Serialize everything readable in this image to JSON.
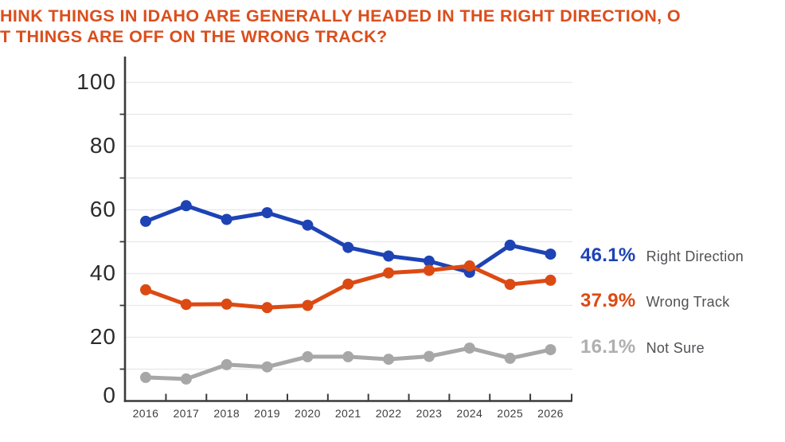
{
  "title": {
    "line1": "HINK THINGS IN IDAHO ARE GENERALLY HEADED IN THE RIGHT DIRECTION, O",
    "line2": "T THINGS ARE OFF ON THE WRONG TRACK?"
  },
  "colors": {
    "title": "#DB4E1C",
    "axis": "#3B3B3B",
    "gridline": "#E8E8E8",
    "y_tick_label": "#2B2B2B",
    "x_tick_label": "#3E3E3E",
    "legend_name_text": "#515156",
    "background": "#FFFFFF"
  },
  "chart_data": {
    "type": "line",
    "x": [
      2016,
      2017,
      2018,
      2019,
      2020,
      2021,
      2022,
      2023,
      2024,
      2025,
      2026
    ],
    "ylim": [
      0,
      100
    ],
    "yticks": [
      0,
      20,
      40,
      60,
      80,
      100
    ],
    "minor_grid_step": 10,
    "grid": "horizontal gridlines every 10, light gray",
    "legend_position": "right, each series labeled with final value",
    "series": [
      {
        "name": "Right Direction",
        "end_label": "46.1%",
        "color": "#1D43B5",
        "label_color": "#1D43B5",
        "values": [
          56.4,
          61.3,
          57.0,
          59.1,
          55.2,
          48.2,
          45.5,
          43.9,
          40.4,
          48.9,
          46.1
        ]
      },
      {
        "name": "Wrong Track",
        "end_label": "37.9%",
        "color": "#DC4A13",
        "label_color": "#DC4A13",
        "values": [
          34.9,
          30.3,
          30.4,
          29.3,
          30.0,
          36.7,
          40.2,
          41.0,
          42.4,
          36.6,
          37.9
        ]
      },
      {
        "name": "Not Sure",
        "end_label": "16.1%",
        "color": "#A7A7A7",
        "label_color": "#AFAFAF",
        "values": [
          7.4,
          6.9,
          11.4,
          10.7,
          13.9,
          13.9,
          13.1,
          14.0,
          16.6,
          13.4,
          16.1
        ]
      }
    ]
  }
}
